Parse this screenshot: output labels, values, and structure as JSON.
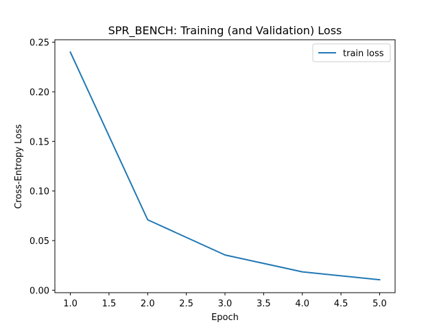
{
  "chart_data": {
    "type": "line",
    "title": "SPR_BENCH: Training (and Validation) Loss",
    "xlabel": "Epoch",
    "ylabel": "Cross-Entropy Loss",
    "xlim": [
      0.8,
      5.2
    ],
    "ylim": [
      -0.0025,
      0.2525
    ],
    "x_ticks": [
      1.0,
      1.5,
      2.0,
      2.5,
      3.0,
      3.5,
      4.0,
      4.5,
      5.0
    ],
    "x_tick_labels": [
      "1.0",
      "1.5",
      "2.0",
      "2.5",
      "3.0",
      "3.5",
      "4.0",
      "4.5",
      "5.0"
    ],
    "y_ticks": [
      0.0,
      0.05,
      0.1,
      0.15,
      0.2,
      0.25
    ],
    "y_tick_labels": [
      "0.00",
      "0.05",
      "0.10",
      "0.15",
      "0.20",
      "0.25"
    ],
    "grid": false,
    "legend_position": "upper right",
    "series": [
      {
        "name": "train loss",
        "color": "#1f77b4",
        "x": [
          1,
          2,
          3,
          4,
          5
        ],
        "y": [
          0.24,
          0.071,
          0.0355,
          0.0185,
          0.0105
        ]
      }
    ]
  }
}
